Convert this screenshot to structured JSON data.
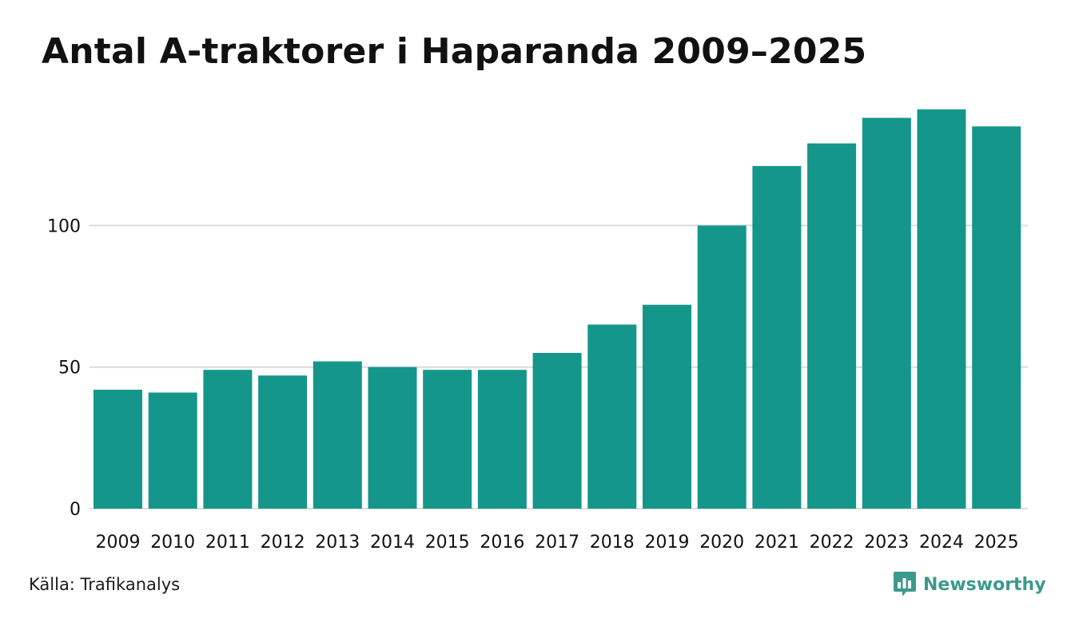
{
  "header": {
    "title": "Antal A-traktorer i Haparanda 2009–2025"
  },
  "footer": {
    "source": "Källa: Trafikanalys",
    "brand": "Newsworthy"
  },
  "icons": {
    "brand_logo": "newsworthy-chat-bubble-bar-chart-icon"
  },
  "colors": {
    "bar": "#14978a",
    "grid": "#dcdcdc",
    "brand": "#3b9a8b",
    "text": "#111111"
  },
  "chart_data": {
    "type": "bar",
    "title": "Antal A-traktorer i Haparanda 2009–2025",
    "xlabel": "",
    "ylabel": "",
    "categories": [
      "2009",
      "2010",
      "2011",
      "2012",
      "2013",
      "2014",
      "2015",
      "2016",
      "2017",
      "2018",
      "2019",
      "2020",
      "2021",
      "2022",
      "2023",
      "2024",
      "2025"
    ],
    "values": [
      42,
      41,
      49,
      47,
      52,
      50,
      49,
      49,
      55,
      65,
      72,
      100,
      121,
      129,
      138,
      141,
      135
    ],
    "yticks": [
      0,
      50,
      100
    ],
    "ylim": [
      0,
      141
    ],
    "grid": true,
    "legend": "none"
  }
}
